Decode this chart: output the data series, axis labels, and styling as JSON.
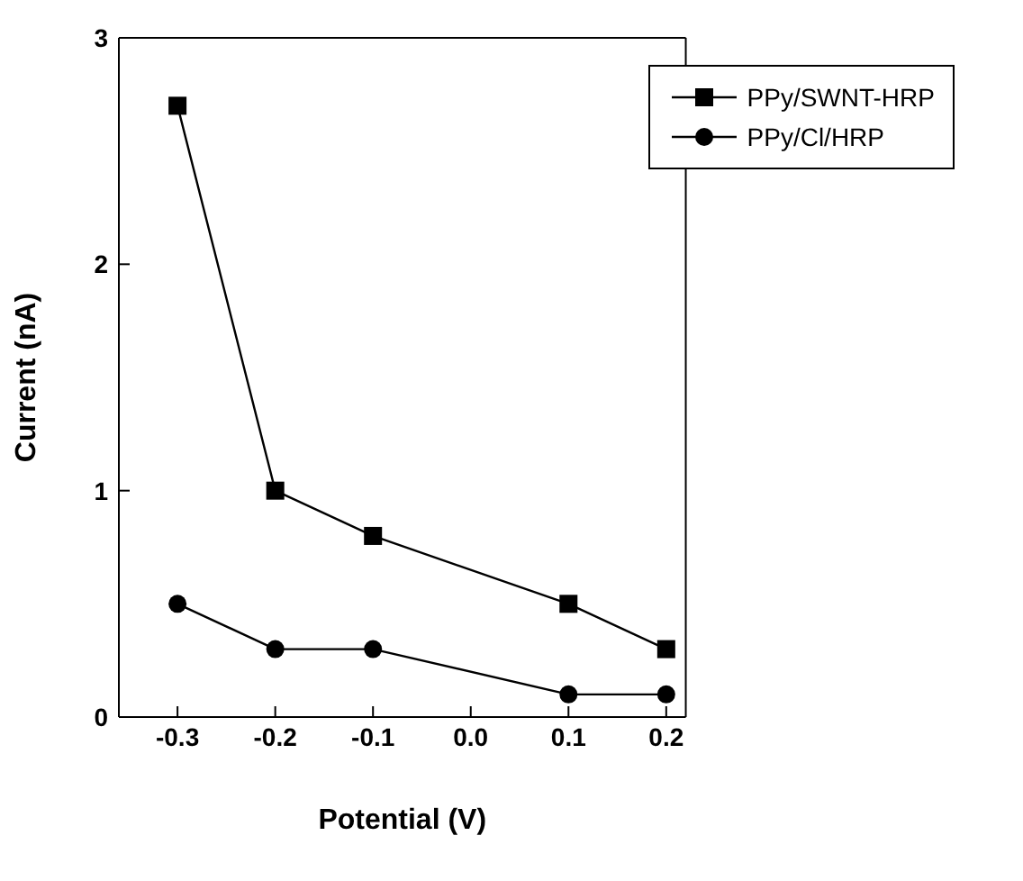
{
  "chart_data": {
    "type": "line",
    "xlabel": "Potential (V)",
    "ylabel": "Current (nA)",
    "xlim": [
      -0.36,
      0.22
    ],
    "xticks": [
      -0.3,
      -0.2,
      -0.1,
      {
        "value": 0,
        "label": "0.0"
      },
      0.1,
      0.2
    ],
    "ylim": [
      0,
      3
    ],
    "yticks": [
      0,
      1,
      2,
      3
    ],
    "grid": false,
    "legend": "top right",
    "line_style": "solid",
    "series": [
      {
        "name": "PPy/SWNT-HRP",
        "color": "#000000",
        "marker": "square",
        "x": [
          -0.3,
          -0.2,
          -0.1,
          0.1,
          0.2
        ],
        "values": [
          2.7,
          1.0,
          0.8,
          0.5,
          0.3
        ]
      },
      {
        "name": "PPy/Cl/HRP",
        "color": "#000000",
        "marker": "circle",
        "x": [
          -0.3,
          -0.2,
          -0.1,
          0.1,
          0.2
        ],
        "values": [
          0.5,
          0.3,
          0.3,
          0.1,
          0.1
        ]
      }
    ]
  }
}
